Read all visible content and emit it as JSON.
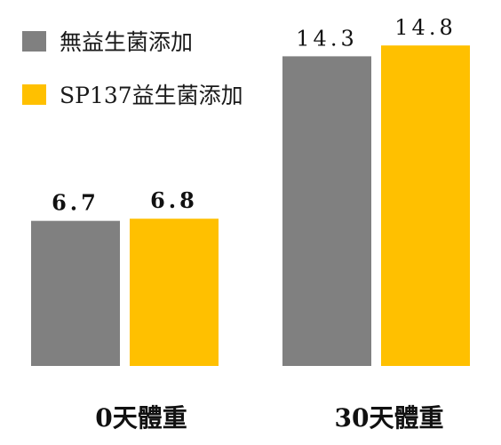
{
  "chart_data": {
    "type": "bar",
    "title": "",
    "xlabel": "",
    "ylabel": "",
    "categories": [
      "0天體重",
      "30天體重"
    ],
    "series": [
      {
        "name": "無益生菌添加",
        "color": "#808080",
        "values": [
          6.7,
          14.3
        ],
        "labels": [
          "6.7",
          "14.3"
        ]
      },
      {
        "name": "SP137益生菌添加",
        "color": "#FFC000",
        "values": [
          6.8,
          14.8
        ],
        "labels": [
          "6.8",
          "14.8"
        ]
      }
    ],
    "ylim": [
      0,
      16.9
    ],
    "grid": false,
    "legend": "top-left"
  }
}
